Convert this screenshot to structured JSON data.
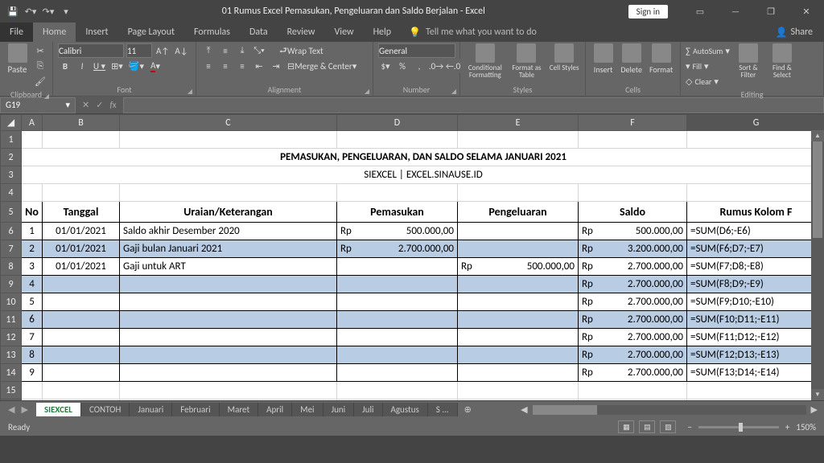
{
  "title": "01 Rumus Excel Pemasukan, Pengeluaran dan Saldo Berjalan  -  Excel",
  "signin": "Sign in",
  "tabs": {
    "file": "File",
    "home": "Home",
    "insert": "Insert",
    "page": "Page Layout",
    "formulas": "Formulas",
    "data": "Data",
    "review": "Review",
    "view": "View",
    "help": "Help"
  },
  "tell": "Tell me what you want to do",
  "share": "Share",
  "ribbon": {
    "clipboard": {
      "paste": "Paste",
      "label": "Clipboard"
    },
    "font": {
      "name": "Calibri",
      "size": "11",
      "label": "Font"
    },
    "alignment": {
      "wrap": "Wrap Text",
      "merge": "Merge & Center",
      "label": "Alignment"
    },
    "number": {
      "fmt": "General",
      "label": "Number"
    },
    "styles": {
      "cond": "Conditional Formatting",
      "table": "Format as Table",
      "cell": "Cell Styles",
      "label": "Styles"
    },
    "cells": {
      "insert": "Insert",
      "delete": "Delete",
      "format": "Format",
      "label": "Cells"
    },
    "editing": {
      "autosum": "AutoSum",
      "fill": "Fill",
      "clear": "Clear",
      "sort": "Sort & Filter",
      "find": "Find & Select",
      "label": "Editing"
    }
  },
  "namebox": "G19",
  "columns": [
    "A",
    "B",
    "C",
    "D",
    "E",
    "F",
    "G"
  ],
  "heading1": "PEMASUKAN, PENGELUARAN, DAN SALDO SELAMA JANUARI 2021",
  "heading2": "SIEXCEL | EXCEL.SINAUSE.ID",
  "headers": {
    "no": "No",
    "tgl": "Tanggal",
    "uraian": "Uraian/Keterangan",
    "masuk": "Pemasukan",
    "keluar": "Pengeluaran",
    "saldo": "Saldo",
    "rumus": "Rumus Kolom F"
  },
  "rows": [
    {
      "n": "1",
      "tgl": "01/01/2021",
      "ur": "Saldo akhir Desember 2020",
      "mRp": "Rp",
      "m": "500.000,00",
      "kRp": "",
      "k": "",
      "sRp": "Rp",
      "s": "500.000,00",
      "f": "=SUM(D6;-E6)",
      "shade": false
    },
    {
      "n": "2",
      "tgl": "01/01/2021",
      "ur": "Gaji bulan Januari 2021",
      "mRp": "Rp",
      "m": "2.700.000,00",
      "kRp": "",
      "k": "",
      "sRp": "Rp",
      "s": "3.200.000,00",
      "f": "=SUM(F6;D7;-E7)",
      "shade": true
    },
    {
      "n": "3",
      "tgl": "01/01/2021",
      "ur": "Gaji untuk ART",
      "mRp": "",
      "m": "",
      "kRp": "Rp",
      "k": "500.000,00",
      "sRp": "Rp",
      "s": "2.700.000,00",
      "f": "=SUM(F7;D8;-E8)",
      "shade": false
    },
    {
      "n": "4",
      "tgl": "",
      "ur": "",
      "mRp": "",
      "m": "",
      "kRp": "",
      "k": "",
      "sRp": "Rp",
      "s": "2.700.000,00",
      "f": "=SUM(F8;D9;-E9)",
      "shade": true
    },
    {
      "n": "5",
      "tgl": "",
      "ur": "",
      "mRp": "",
      "m": "",
      "kRp": "",
      "k": "",
      "sRp": "Rp",
      "s": "2.700.000,00",
      "f": "=SUM(F9;D10;-E10)",
      "shade": false
    },
    {
      "n": "6",
      "tgl": "",
      "ur": "",
      "mRp": "",
      "m": "",
      "kRp": "",
      "k": "",
      "sRp": "Rp",
      "s": "2.700.000,00",
      "f": "=SUM(F10;D11;-E11)",
      "shade": true
    },
    {
      "n": "7",
      "tgl": "",
      "ur": "",
      "mRp": "",
      "m": "",
      "kRp": "",
      "k": "",
      "sRp": "Rp",
      "s": "2.700.000,00",
      "f": "=SUM(F11;D12;-E12)",
      "shade": false
    },
    {
      "n": "8",
      "tgl": "",
      "ur": "",
      "mRp": "",
      "m": "",
      "kRp": "",
      "k": "",
      "sRp": "Rp",
      "s": "2.700.000,00",
      "f": "=SUM(F12;D13;-E13)",
      "shade": true
    },
    {
      "n": "9",
      "tgl": "",
      "ur": "",
      "mRp": "",
      "m": "",
      "kRp": "",
      "k": "",
      "sRp": "Rp",
      "s": "2.700.000,00",
      "f": "=SUM(F13;D14;-E14)",
      "shade": false
    }
  ],
  "sheets": [
    "SIEXCEL",
    "CONTOH",
    "Januari",
    "Februari",
    "Maret",
    "April",
    "Mei",
    "Juni",
    "Juli",
    "Agustus",
    "S ..."
  ],
  "status": {
    "ready": "Ready",
    "zoom": "150%"
  }
}
